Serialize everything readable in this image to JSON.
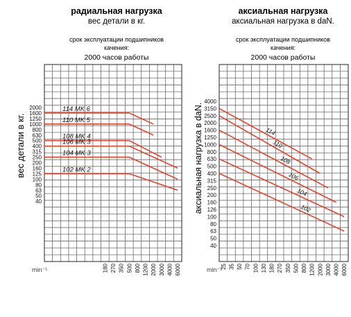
{
  "chart_data": [
    {
      "type": "line",
      "title": "радиальная нагрузка",
      "subtitle": "вес детали в кг.",
      "note_lines": [
        "срок эксплуатации подшипников",
        "качения:",
        "2000 часов работы"
      ],
      "ylabel": "вес детали в кг.",
      "xlabel": "min⁻¹",
      "y_ticks": [
        "40",
        "50",
        "63",
        "80",
        "100",
        "125",
        "160",
        "200",
        "250",
        "315",
        "400",
        "500",
        "630",
        "800",
        "1000",
        "1250",
        "1600",
        "2000"
      ],
      "x_ticks": [
        "180",
        "270",
        "350",
        "500",
        "800",
        "1200",
        "2000",
        "3000",
        "4000",
        "6000"
      ],
      "grid": true,
      "series": [
        {
          "name": "114 MK 6",
          "x": [
            "180",
            "500",
            "2000"
          ],
          "y": [
            "1600",
            "1600",
            "1000"
          ]
        },
        {
          "name": "110 MK 5",
          "x": [
            "180",
            "500",
            "2000"
          ],
          "y": [
            "1000",
            "1000",
            "630"
          ]
        },
        {
          "name": "108 MK 4",
          "x": [
            "180",
            "500",
            "3000"
          ],
          "y": [
            "500",
            "500",
            "250"
          ]
        },
        {
          "name": "106 MK 3",
          "x": [
            "180",
            "500",
            "6000"
          ],
          "y": [
            "400",
            "400",
            "160"
          ]
        },
        {
          "name": "104 MK 3",
          "x": [
            "180",
            "500",
            "6000"
          ],
          "y": [
            "250",
            "250",
            "100"
          ]
        },
        {
          "name": "102 MK 2",
          "x": [
            "180",
            "500",
            "6000"
          ],
          "y": [
            "125",
            "125",
            "63"
          ]
        }
      ]
    },
    {
      "type": "line",
      "title": "аксиальная нагрузка",
      "subtitle": "аксиальная нагрузка в daN.",
      "note_lines": [
        "срок эксплуатации подшипников",
        "качения:",
        "2000 часов работы"
      ],
      "ylabel": "аксиальная нагрузка в daN.",
      "xlabel": "min⁻¹",
      "y_ticks": [
        "40",
        "50",
        "63",
        "80",
        "100",
        "126",
        "160",
        "200",
        "250",
        "315",
        "400",
        "500",
        "630",
        "800",
        "1000",
        "1250",
        "1600",
        "2000",
        "2500",
        "3150",
        "4000"
      ],
      "x_ticks": [
        "25",
        "35",
        "50",
        "70",
        "100",
        "130",
        "180",
        "270",
        "350",
        "500",
        "800",
        "1200",
        "2000",
        "3000",
        "4000",
        "6000"
      ],
      "grid": true,
      "series": [
        {
          "name": "114",
          "x": [
            "25",
            "1200"
          ],
          "y": [
            "3150",
            "630"
          ]
        },
        {
          "name": "110",
          "x": [
            "25",
            "2000"
          ],
          "y": [
            "2500",
            "400"
          ]
        },
        {
          "name": "108",
          "x": [
            "25",
            "3000"
          ],
          "y": [
            "1600",
            "250"
          ]
        },
        {
          "name": "106",
          "x": [
            "25",
            "4000"
          ],
          "y": [
            "1000",
            "160"
          ]
        },
        {
          "name": "104",
          "x": [
            "25",
            "6000"
          ],
          "y": [
            "630",
            "100"
          ]
        },
        {
          "name": "102",
          "x": [
            "25",
            "6000"
          ],
          "y": [
            "400",
            "63"
          ]
        }
      ]
    }
  ],
  "colors": {
    "curve": "#e8402a",
    "grid": "#555555",
    "text": "#111111"
  }
}
